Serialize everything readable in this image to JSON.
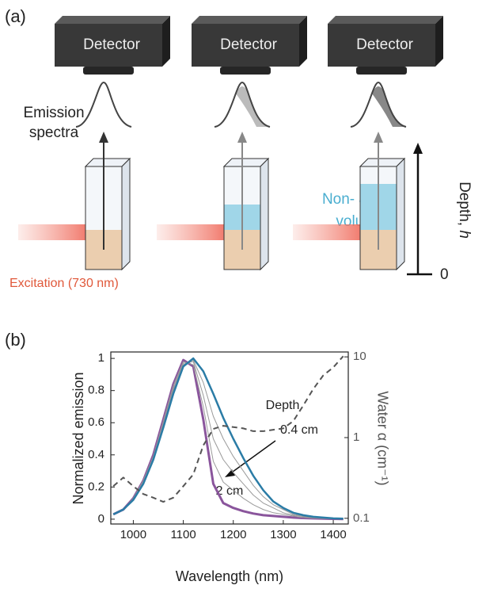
{
  "panel_a": {
    "label": "(a)",
    "detector_labels": [
      "Detector",
      "Detector",
      "Detector"
    ],
    "emission_label_lines": [
      "Emission",
      "spectra"
    ],
    "non_active_label_lines": [
      "Non- active",
      "volume"
    ],
    "excitation_label": "Excitation (730 nm)",
    "depth_label": "Depth,",
    "depth_symbol": "h",
    "depth_zero": "0"
  },
  "chart_data": {
    "type": "line",
    "panel_label": "(b)",
    "x_label": "Wavelength (nm)",
    "y_label": "Normalized emission",
    "y2_label": "Water α (cm⁻¹)",
    "annotations": [
      "Depth",
      "0.4 cm",
      "2 cm"
    ],
    "x": [
      960,
      980,
      1000,
      1020,
      1040,
      1060,
      1080,
      1100,
      1120,
      1140,
      1160,
      1180,
      1200,
      1220,
      1240,
      1260,
      1280,
      1300,
      1320,
      1340,
      1360,
      1380,
      1400,
      1420
    ],
    "xlim": [
      955,
      1430
    ],
    "xticks": [
      1000,
      1100,
      1200,
      1300,
      1400
    ],
    "ylim": [
      -0.03,
      1.04
    ],
    "yticks": [
      0,
      0.2,
      0.4,
      0.6,
      0.8,
      1
    ],
    "y2lim": [
      0.085,
      11.5
    ],
    "y2ticks": [
      0.1,
      1,
      10
    ],
    "y2_log": true,
    "series": [
      {
        "color": "#8a559c",
        "width": 3,
        "values": [
          0.03,
          0.06,
          0.13,
          0.24,
          0.4,
          0.62,
          0.84,
          0.99,
          0.95,
          0.62,
          0.22,
          0.1,
          0.07,
          0.05,
          0.035,
          0.025,
          0.02,
          0.015,
          0.01,
          0.007,
          0.005,
          0.003,
          0.002,
          0.001
        ]
      },
      {
        "color": "#9a9a9a",
        "width": 1,
        "values": [
          0.03,
          0.06,
          0.13,
          0.24,
          0.39,
          0.61,
          0.83,
          0.98,
          0.96,
          0.7,
          0.36,
          0.23,
          0.18,
          0.13,
          0.09,
          0.06,
          0.04,
          0.03,
          0.02,
          0.01,
          0.007,
          0.004,
          0.002,
          0.001
        ]
      },
      {
        "color": "#9a9a9a",
        "width": 1,
        "values": [
          0.03,
          0.06,
          0.12,
          0.23,
          0.39,
          0.59,
          0.81,
          0.97,
          0.98,
          0.77,
          0.5,
          0.37,
          0.29,
          0.22,
          0.15,
          0.1,
          0.07,
          0.04,
          0.025,
          0.016,
          0.01,
          0.006,
          0.003,
          0.002
        ]
      },
      {
        "color": "#9a9a9a",
        "width": 1,
        "values": [
          0.03,
          0.06,
          0.12,
          0.23,
          0.38,
          0.58,
          0.8,
          0.96,
          0.99,
          0.85,
          0.64,
          0.5,
          0.39,
          0.3,
          0.21,
          0.14,
          0.09,
          0.06,
          0.03,
          0.02,
          0.012,
          0.008,
          0.004,
          0.002
        ]
      },
      {
        "color": "#2b7ca6",
        "width": 2.5,
        "values": [
          0.03,
          0.06,
          0.12,
          0.22,
          0.37,
          0.57,
          0.78,
          0.95,
          1,
          0.92,
          0.78,
          0.63,
          0.5,
          0.38,
          0.27,
          0.18,
          0.11,
          0.07,
          0.04,
          0.025,
          0.015,
          0.01,
          0.005,
          0.003
        ]
      },
      {
        "color": "#555555",
        "width": 2,
        "line_style": "dashed",
        "axis": "y2",
        "values": [
          0.25,
          0.32,
          0.25,
          0.2,
          0.18,
          0.16,
          0.18,
          0.25,
          0.35,
          0.8,
          1.28,
          1.4,
          1.35,
          1.3,
          1.2,
          1.2,
          1.25,
          1.3,
          1.6,
          2.5,
          4,
          5.9,
          7.4,
          10.2
        ]
      }
    ]
  }
}
